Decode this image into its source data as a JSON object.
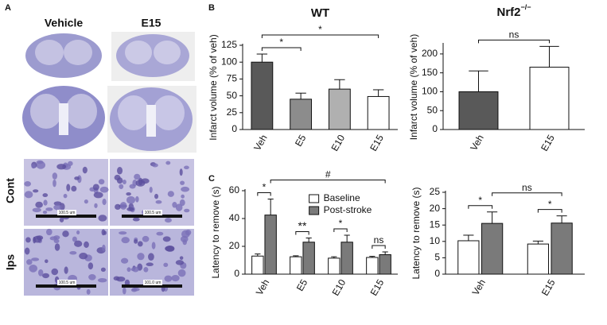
{
  "panels": {
    "a": "A",
    "b": "B",
    "c": "C",
    "col_vehicle": "Vehicle",
    "col_e15": "E15",
    "row_cont": "Cont",
    "row_ips": "Ips",
    "scale_bars": [
      "100.5 um",
      "100.5 um",
      "100.5 um",
      "101.0 um"
    ]
  },
  "chart_data": [
    {
      "type": "bar",
      "title": "WT",
      "ylabel": "Infarct volume (% of veh)",
      "categories": [
        "Veh",
        "E5",
        "E10",
        "E15"
      ],
      "values": [
        100,
        45,
        60,
        49
      ],
      "errors": [
        12,
        9,
        14,
        10
      ],
      "colors": [
        "#595959",
        "#8c8c8c",
        "#b0b0b0",
        "#ffffff"
      ],
      "ylim": [
        0,
        125
      ],
      "yticks": [
        0,
        25,
        50,
        75,
        100,
        125
      ],
      "annotations": [
        {
          "text": "*",
          "between": [
            "Veh",
            "E5"
          ]
        },
        {
          "text": "*",
          "between": [
            "Veh",
            "E15"
          ]
        }
      ]
    },
    {
      "type": "bar",
      "title": "Nrf2",
      "title_sup": "−/−",
      "ylabel": "Infarct volume (% of veh)",
      "categories": [
        "Veh",
        "E15"
      ],
      "values": [
        100,
        165
      ],
      "errors": [
        55,
        55
      ],
      "colors": [
        "#595959",
        "#ffffff"
      ],
      "ylim": [
        0,
        225
      ],
      "yticks": [
        0,
        50,
        100,
        150,
        200
      ],
      "annotations": [
        {
          "text": "ns",
          "between": [
            "Veh",
            "E15"
          ]
        }
      ]
    },
    {
      "type": "grouped_bar",
      "ylabel": "Latency to remove (s)",
      "legend": "upper center",
      "categories": [
        "Veh",
        "E5",
        "E10",
        "E15"
      ],
      "series": [
        {
          "name": "Baseline",
          "color": "#ffffff",
          "values": [
            13,
            12.5,
            11.5,
            12
          ],
          "errors": [
            1.5,
            0.7,
            1,
            0.8
          ]
        },
        {
          "name": "Post-stroke",
          "color": "#7a7a7a",
          "values": [
            42.5,
            23,
            23,
            14
          ],
          "errors": [
            11.5,
            3,
            5,
            2
          ]
        }
      ],
      "ylim": [
        0,
        60
      ],
      "yticks": [
        0,
        20,
        40,
        60
      ],
      "annotations": [
        {
          "text": "*",
          "between": [
            "Veh"
          ]
        },
        {
          "text": "**",
          "between": [
            "E5"
          ]
        },
        {
          "text": "*",
          "between": [
            "E10"
          ]
        },
        {
          "text": "ns",
          "between": [
            "E15"
          ]
        },
        {
          "text": "#",
          "between": [
            "Veh",
            "E15"
          ]
        }
      ]
    },
    {
      "type": "grouped_bar",
      "ylabel": "Latency to remove (s)",
      "categories": [
        "Veh",
        "E15"
      ],
      "series": [
        {
          "name": "Baseline",
          "color": "#ffffff",
          "values": [
            10.2,
            9.2
          ],
          "errors": [
            1.7,
            0.9
          ]
        },
        {
          "name": "Post-stroke",
          "color": "#7a7a7a",
          "values": [
            15.5,
            15.6
          ],
          "errors": [
            3.5,
            2.2
          ]
        }
      ],
      "ylim": [
        0,
        25
      ],
      "yticks": [
        0,
        5,
        10,
        15,
        20,
        25
      ],
      "annotations": [
        {
          "text": "*",
          "between": [
            "Veh"
          ]
        },
        {
          "text": "*",
          "between": [
            "E15"
          ]
        },
        {
          "text": "ns",
          "between": [
            "Veh",
            "E15"
          ]
        }
      ]
    }
  ]
}
